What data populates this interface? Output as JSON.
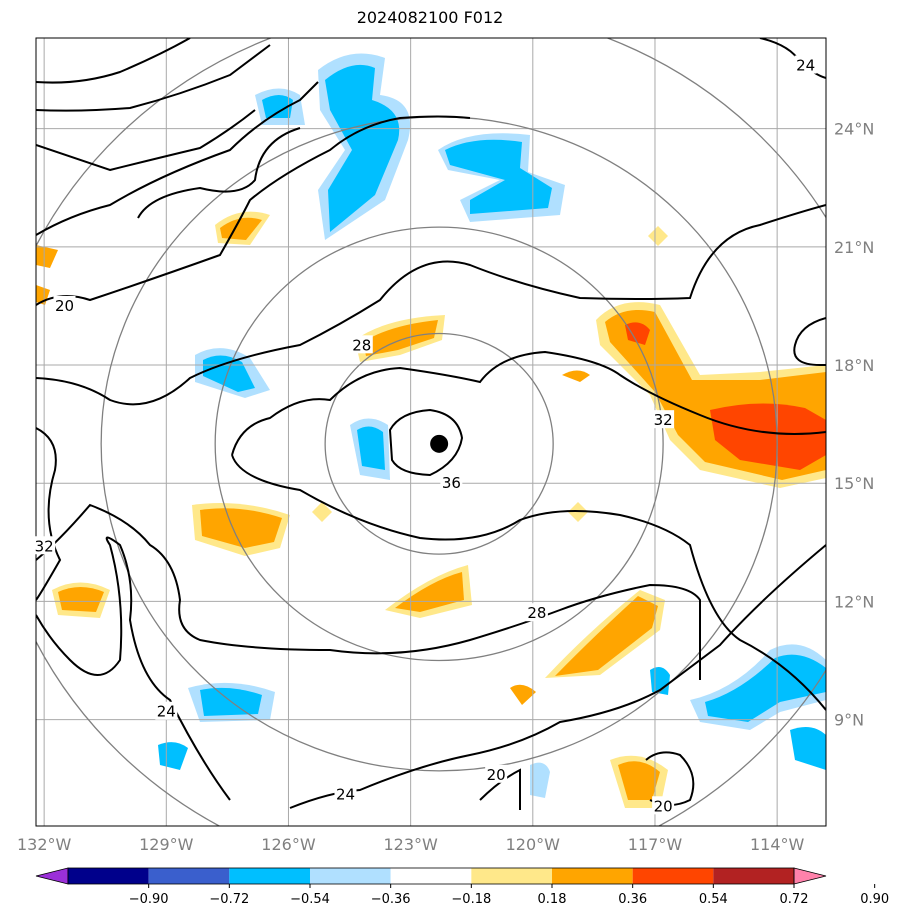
{
  "title": "2024082100 F012",
  "map": {
    "lon_range": [
      -132.2,
      -112.8
    ],
    "lat_range": [
      6.3,
      26.3
    ],
    "lon_ticks": [
      {
        "value": -132,
        "label": "132°W"
      },
      {
        "value": -129,
        "label": "129°W"
      },
      {
        "value": -126,
        "label": "126°W"
      },
      {
        "value": -123,
        "label": "123°W"
      },
      {
        "value": -120,
        "label": "120°W"
      },
      {
        "value": -117,
        "label": "117°W"
      },
      {
        "value": -114,
        "label": "114°W"
      }
    ],
    "lat_ticks": [
      {
        "value": 9,
        "label": "9°N"
      },
      {
        "value": 12,
        "label": "12°N"
      },
      {
        "value": 15,
        "label": "15°N"
      },
      {
        "value": 18,
        "label": "18°N"
      },
      {
        "value": 21,
        "label": "21°N"
      },
      {
        "value": 24,
        "label": "24°N"
      }
    ],
    "storm_center": {
      "lon": -122.3,
      "lat": 16.0
    },
    "range_ring_radii_deg": [
      2.8,
      5.5,
      8.3,
      11.1
    ],
    "contour_labels": [
      {
        "text": "20",
        "lon": -131.5,
        "lat": 19.5
      },
      {
        "text": "28",
        "lon": -124.2,
        "lat": 18.5
      },
      {
        "text": "36",
        "lon": -122.0,
        "lat": 15.0
      },
      {
        "text": "32",
        "lon": -116.8,
        "lat": 16.6
      },
      {
        "text": "24",
        "lon": -113.3,
        "lat": 25.6
      },
      {
        "text": "28",
        "lon": -119.9,
        "lat": 11.7
      },
      {
        "text": "24",
        "lon": -129.0,
        "lat": 9.2
      },
      {
        "text": "24",
        "lon": -124.6,
        "lat": 7.1
      },
      {
        "text": "20",
        "lon": -120.9,
        "lat": 7.6
      },
      {
        "text": "20",
        "lon": -116.8,
        "lat": 6.8
      },
      {
        "text": "32",
        "lon": -132.0,
        "lat": 13.4
      }
    ]
  },
  "colorbar": {
    "colors": [
      "#9b30d9",
      "#00008b",
      "#3a5fcd",
      "#00bfff",
      "#b0e0ff",
      "#ffffff",
      "#ffe88a",
      "#ffa500",
      "#ff4500",
      "#b22222",
      "#ff82ab"
    ],
    "labels": [
      "−0.90",
      "−0.72",
      "−0.54",
      "−0.36",
      "−0.18",
      "0.18",
      "0.36",
      "0.54",
      "0.72",
      "0.90"
    ]
  }
}
